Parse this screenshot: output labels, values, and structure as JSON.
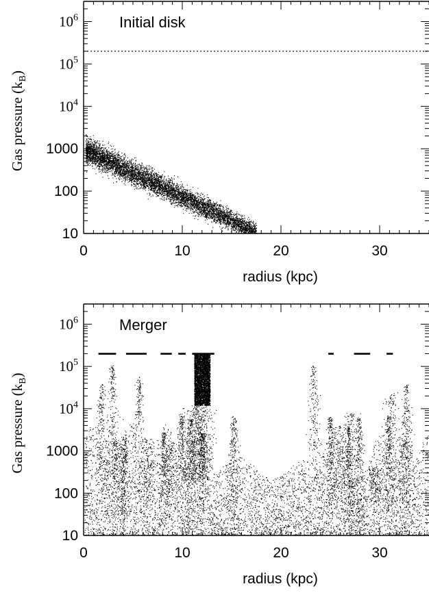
{
  "chart_data": [
    {
      "type": "scatter",
      "annotation": "Initial disk",
      "xlabel": "radius (kpc)",
      "ylabel": "Gas pressure (k",
      "ylabel_sub": "B",
      "ylabel_close": ")",
      "xlim": [
        0,
        35
      ],
      "ylim": [
        10,
        3000000
      ],
      "yscale": "log",
      "xticks": [
        0,
        10,
        20,
        30
      ],
      "xtick_labels": [
        "0",
        "10",
        "20",
        "30"
      ],
      "ytick_labels": [
        {
          "value": 10,
          "base": "10",
          "exp": ""
        },
        {
          "value": 100,
          "base": "100",
          "exp": ""
        },
        {
          "value": 1000,
          "base": "1000",
          "exp": ""
        },
        {
          "value": 10000,
          "base": "10",
          "exp": "4"
        },
        {
          "value": 100000,
          "base": "10",
          "exp": "5"
        },
        {
          "value": 1000000,
          "base": "10",
          "exp": "6"
        }
      ],
      "reference_line": {
        "y": 200000,
        "style": "dotted"
      },
      "distribution": {
        "x_range": [
          0.2,
          17.5
        ],
        "log10_pressure_at_r0": 3.0,
        "log10_slope_per_kpc": -0.113,
        "log10_scatter": 0.15,
        "points": 7000
      }
    },
    {
      "type": "scatter",
      "annotation": "Merger",
      "xlabel": "radius (kpc)",
      "ylabel": "Gas pressure (k",
      "ylabel_sub": "B",
      "ylabel_close": ")",
      "xlim": [
        0,
        35
      ],
      "ylim": [
        10,
        3000000
      ],
      "yscale": "log",
      "xticks": [
        0,
        10,
        20,
        30
      ],
      "xtick_labels": [
        "0",
        "10",
        "20",
        "30"
      ],
      "ytick_labels": [
        {
          "value": 10,
          "base": "10",
          "exp": ""
        },
        {
          "value": 100,
          "base": "100",
          "exp": ""
        },
        {
          "value": 1000,
          "base": "1000",
          "exp": ""
        },
        {
          "value": 10000,
          "base": "10",
          "exp": "4"
        },
        {
          "value": 100000,
          "base": "10",
          "exp": "5"
        },
        {
          "value": 1000000,
          "base": "10",
          "exp": "6"
        }
      ],
      "pressure_ceiling": 200000,
      "dense_column": {
        "x_range": [
          11.2,
          12.8
        ],
        "y_range": [
          12000,
          200000
        ]
      },
      "spikes_x": [
        1.8,
        2.9,
        4.1,
        5.6,
        8.1,
        9.9,
        10.8,
        12.0,
        15.2,
        23.3,
        25.0,
        26.8,
        27.9,
        30.9,
        32.7
      ],
      "ceiling_segments_x": [
        [
          1.5,
          3.2
        ],
        [
          4.3,
          6.3
        ],
        [
          7.8,
          8.9
        ],
        [
          9.6,
          10.3
        ],
        [
          11.0,
          13.2
        ],
        [
          24.8,
          25.3
        ],
        [
          27.4,
          29.0
        ],
        [
          30.7,
          31.3
        ]
      ]
    }
  ]
}
